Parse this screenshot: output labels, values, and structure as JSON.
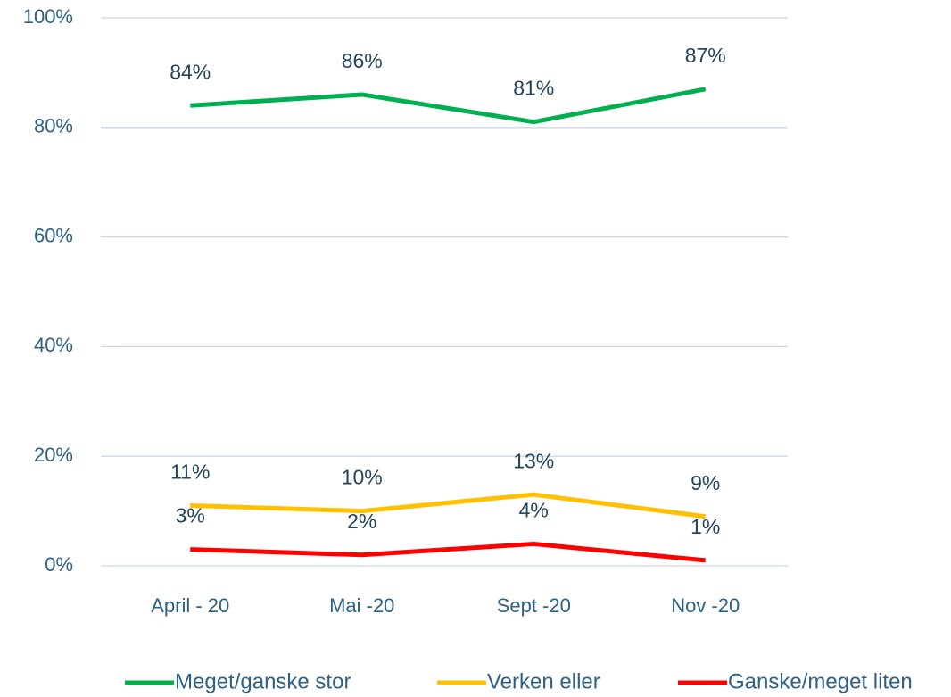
{
  "chart_data": {
    "type": "line",
    "categories": [
      "April - 20",
      "Mai -20",
      "Sept -20",
      "Nov -20"
    ],
    "series": [
      {
        "name": "Meget/ganske stor",
        "color": "#00b050",
        "values": [
          84,
          86,
          81,
          87
        ],
        "value_labels": [
          "84%",
          "86%",
          "81%",
          "87%"
        ]
      },
      {
        "name": "Verken eller",
        "color": "#ffc000",
        "values": [
          11,
          10,
          13,
          9
        ],
        "value_labels": [
          "11%",
          "10%",
          "13%",
          "9%"
        ]
      },
      {
        "name": "Ganske/meget liten",
        "color": "#ff0000",
        "values": [
          3,
          2,
          4,
          1
        ],
        "value_labels": [
          "3%",
          "2%",
          "4%",
          "1%"
        ]
      }
    ],
    "ylim": [
      0,
      100
    ],
    "yticks": [
      {
        "value": 0,
        "label": "0%"
      },
      {
        "value": 20,
        "label": "20%"
      },
      {
        "value": 40,
        "label": "40%"
      },
      {
        "value": 60,
        "label": "60%"
      },
      {
        "value": 80,
        "label": "80%"
      },
      {
        "value": 100,
        "label": "100%"
      }
    ],
    "grid": true,
    "legend": "bottom"
  }
}
